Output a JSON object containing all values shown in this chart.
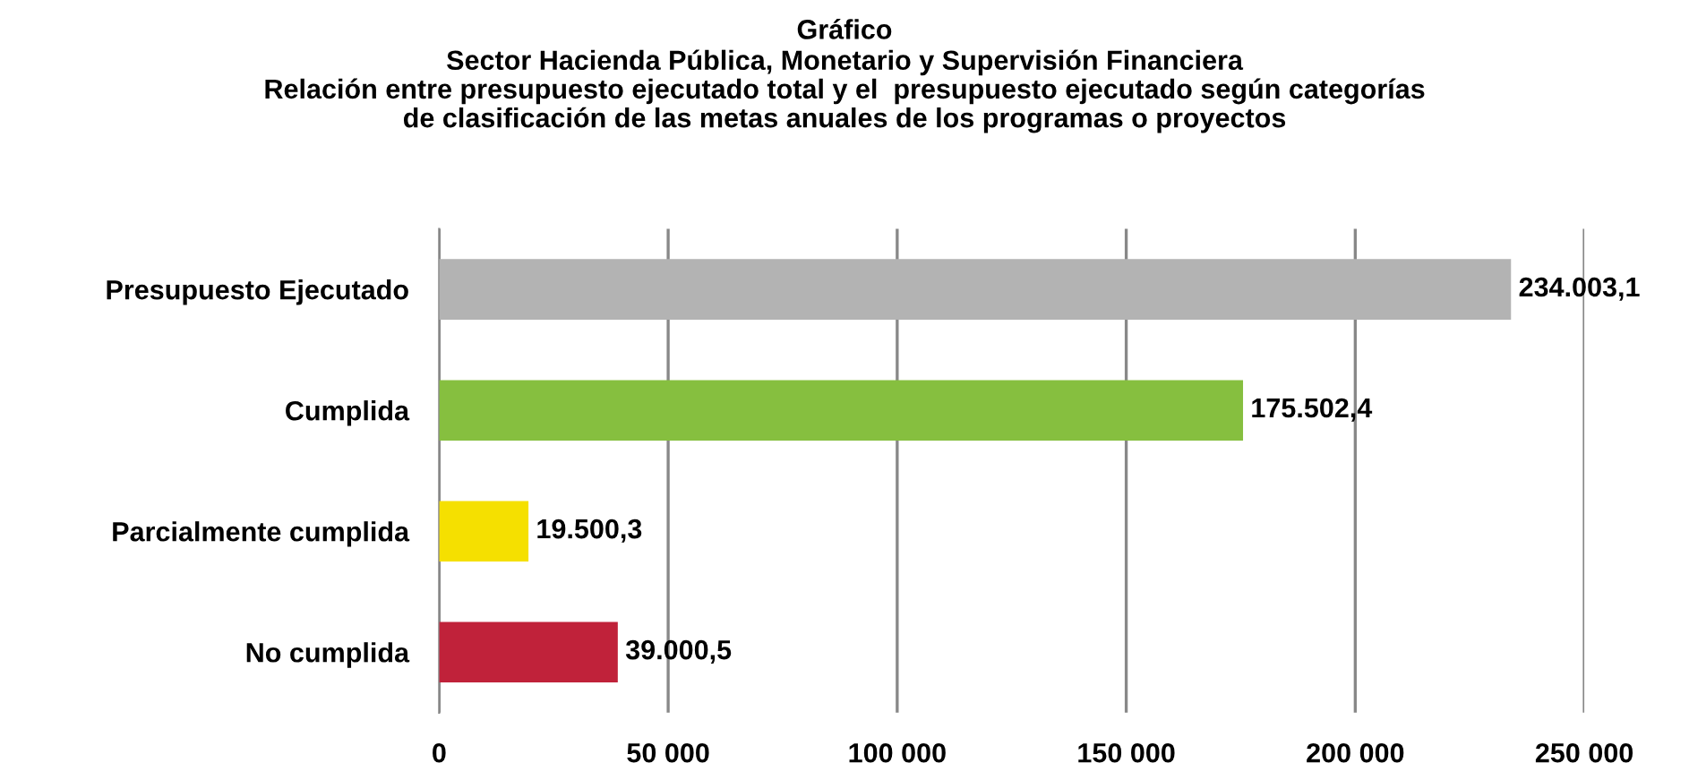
{
  "chart_data": {
    "type": "bar",
    "orientation": "horizontal",
    "title": "Gráfico",
    "subtitle": "Sector Hacienda Pública, Monetario y Supervisión Financiera\nRelación entre presupuesto ejecutado total y el  presupuesto ejecutado según categorías\nde clasificación de las metas anuales de los programas o proyectos",
    "categories": [
      "Presupuesto Ejecutado",
      "Cumplida",
      "Parcialmente cumplida",
      "No cumplida"
    ],
    "values": [
      234003.1,
      175502.4,
      19500.3,
      39000.5
    ],
    "colors": [
      "#b3b3b3",
      "#86bf3f",
      "#f5e000",
      "#c0223a"
    ],
    "value_labels": [
      "234.003,1",
      "175.502,4",
      "19.500,3",
      "39.000,5"
    ],
    "xlim": [
      0,
      250000
    ],
    "xticks": [
      0,
      {
        "value": 50000,
        "label": "50 000"
      },
      {
        "value": 100000,
        "label": "100 000"
      },
      {
        "value": 150000,
        "label": "150 000"
      },
      {
        "value": 200000,
        "label": "200 000"
      },
      {
        "value": 250000,
        "label": "250 000"
      }
    ],
    "grid": "x"
  }
}
